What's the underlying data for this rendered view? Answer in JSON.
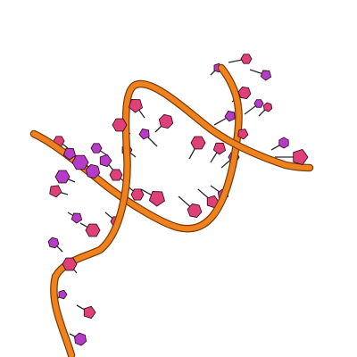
{
  "viewer": {
    "background": "#ffffff",
    "backbone_color": "#f0821e",
    "backbone_edge_color": "#7a3a08",
    "base_pink": "#e0407a",
    "base_purple": "#b43cc8",
    "base_edge_color": "#3a1020",
    "stick_color": "#2a2a2a"
  }
}
